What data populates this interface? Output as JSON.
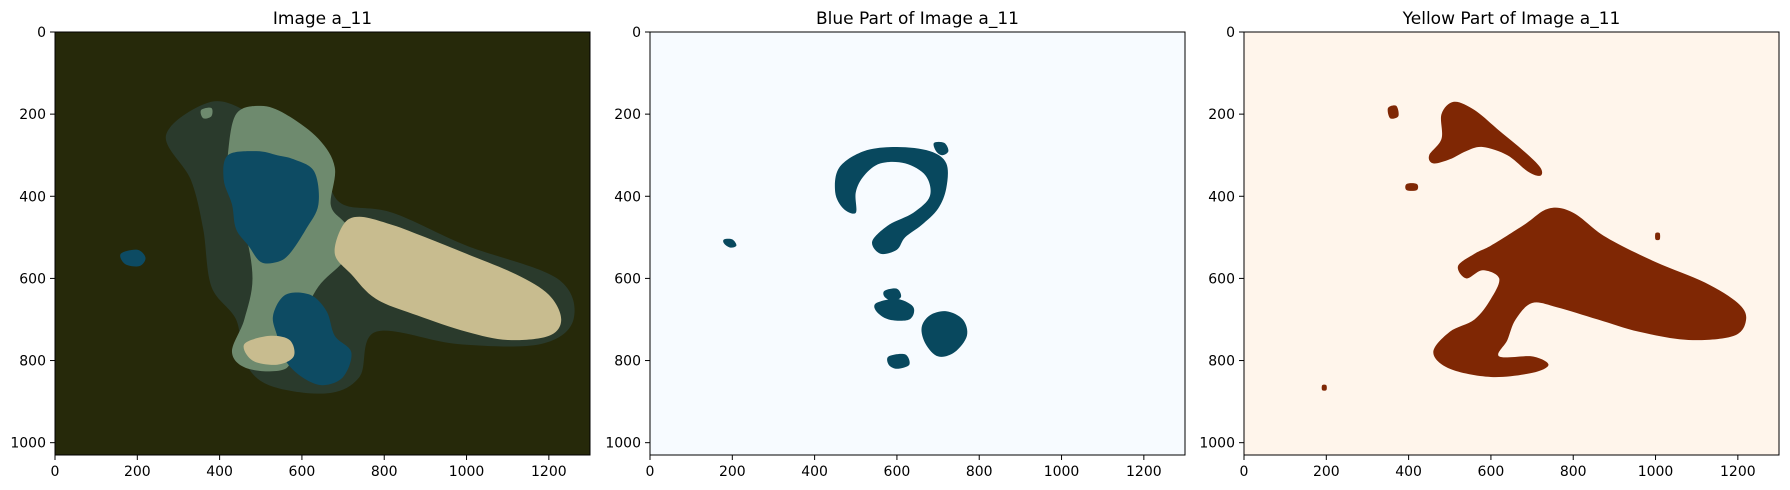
{
  "chart_data": [
    {
      "type": "image",
      "title": "Image a_11",
      "x_ticks": [
        "0",
        "200",
        "400",
        "600",
        "800",
        "1000",
        "1200"
      ],
      "y_ticks": [
        "0",
        "200",
        "400",
        "600",
        "800",
        "1000"
      ],
      "x_tick_values": [
        0,
        200,
        400,
        600,
        800,
        1000,
        1200
      ],
      "y_tick_values": [
        0,
        200,
        400,
        600,
        800,
        1000
      ],
      "xlim": [
        0,
        1300
      ],
      "ylim": [
        1030,
        0
      ],
      "background_color": "#26290a",
      "regions": [
        {
          "color": "#2a3a2c",
          "blob": [
            [
              270,
              250
            ],
            [
              380,
              170
            ],
            [
              480,
              200
            ],
            [
              560,
              250
            ],
            [
              620,
              300
            ],
            [
              660,
              360
            ],
            [
              700,
              420
            ],
            [
              820,
              440
            ],
            [
              1000,
              520
            ],
            [
              1220,
              600
            ],
            [
              1260,
              700
            ],
            [
              1180,
              760
            ],
            [
              980,
              760
            ],
            [
              780,
              730
            ],
            [
              740,
              840
            ],
            [
              660,
              880
            ],
            [
              520,
              860
            ],
            [
              460,
              800
            ],
            [
              440,
              700
            ],
            [
              380,
              620
            ],
            [
              360,
              480
            ],
            [
              330,
              360
            ]
          ]
        },
        {
          "color": "#6e8a6e",
          "blob": [
            [
              440,
              200
            ],
            [
              500,
              180
            ],
            [
              560,
              200
            ],
            [
              640,
              260
            ],
            [
              680,
              330
            ],
            [
              670,
              420
            ],
            [
              700,
              460
            ],
            [
              740,
              500
            ],
            [
              700,
              560
            ],
            [
              640,
              620
            ],
            [
              600,
              700
            ],
            [
              580,
              760
            ],
            [
              560,
              820
            ],
            [
              470,
              820
            ],
            [
              430,
              780
            ],
            [
              460,
              700
            ],
            [
              480,
              600
            ],
            [
              460,
              480
            ],
            [
              420,
              380
            ],
            [
              420,
              300
            ]
          ]
        },
        {
          "color": "#0d4b63",
          "blob": [
            [
              420,
              300
            ],
            [
              490,
              290
            ],
            [
              540,
              300
            ],
            [
              580,
              310
            ],
            [
              630,
              340
            ],
            [
              640,
              420
            ],
            [
              610,
              480
            ],
            [
              570,
              540
            ],
            [
              540,
              560
            ],
            [
              500,
              560
            ],
            [
              470,
              520
            ],
            [
              440,
              480
            ],
            [
              430,
              420
            ],
            [
              410,
              360
            ]
          ]
        },
        {
          "color": "#0d4b63",
          "blob": [
            [
              560,
              640
            ],
            [
              620,
              640
            ],
            [
              660,
              680
            ],
            [
              680,
              740
            ],
            [
              720,
              780
            ],
            [
              700,
              840
            ],
            [
              650,
              860
            ],
            [
              600,
              840
            ],
            [
              560,
              800
            ],
            [
              540,
              740
            ],
            [
              530,
              690
            ]
          ]
        },
        {
          "color": "#0d4b63",
          "blob": [
            [
              160,
              540
            ],
            [
              200,
              530
            ],
            [
              220,
              550
            ],
            [
              205,
              570
            ],
            [
              170,
              565
            ]
          ]
        },
        {
          "color": "#c8bc8f",
          "blob": [
            [
              700,
              470
            ],
            [
              740,
              450
            ],
            [
              820,
              470
            ],
            [
              900,
              500
            ],
            [
              1000,
              540
            ],
            [
              1120,
              590
            ],
            [
              1200,
              640
            ],
            [
              1230,
              700
            ],
            [
              1200,
              740
            ],
            [
              1100,
              750
            ],
            [
              1000,
              730
            ],
            [
              880,
              690
            ],
            [
              780,
              650
            ],
            [
              720,
              590
            ],
            [
              680,
              540
            ]
          ]
        },
        {
          "color": "#c8bc8f",
          "blob": [
            [
              460,
              760
            ],
            [
              520,
              740
            ],
            [
              570,
              750
            ],
            [
              580,
              790
            ],
            [
              540,
              810
            ],
            [
              480,
              800
            ]
          ]
        },
        {
          "color": "#6e8a6e",
          "blob": [
            [
              355,
              190
            ],
            [
              380,
              185
            ],
            [
              380,
              205
            ],
            [
              360,
              210
            ]
          ]
        }
      ]
    },
    {
      "type": "image",
      "title": "Blue Part of Image a_11",
      "x_ticks": [
        "0",
        "200",
        "400",
        "600",
        "800",
        "1000",
        "1200"
      ],
      "y_ticks": [
        "0",
        "200",
        "400",
        "600",
        "800",
        "1000"
      ],
      "x_tick_values": [
        0,
        200,
        400,
        600,
        800,
        1000,
        1200
      ],
      "y_tick_values": [
        0,
        200,
        400,
        600,
        800,
        1000
      ],
      "xlim": [
        0,
        1300
      ],
      "ylim": [
        1030,
        0
      ],
      "background_color": "#f7fbff",
      "regions": [
        {
          "color": "#08485e",
          "blob": [
            [
              460,
              330
            ],
            [
              520,
              290
            ],
            [
              600,
              280
            ],
            [
              680,
              290
            ],
            [
              720,
              320
            ],
            [
              720,
              380
            ],
            [
              700,
              430
            ],
            [
              660,
              470
            ],
            [
              620,
              500
            ],
            [
              600,
              530
            ],
            [
              560,
              540
            ],
            [
              540,
              510
            ],
            [
              580,
              470
            ],
            [
              640,
              440
            ],
            [
              680,
              400
            ],
            [
              670,
              350
            ],
            [
              620,
              320
            ],
            [
              560,
              320
            ],
            [
              520,
              350
            ],
            [
              500,
              390
            ],
            [
              500,
              440
            ],
            [
              470,
              430
            ],
            [
              450,
              390
            ]
          ]
        },
        {
          "color": "#08485e",
          "blob": [
            [
              690,
              270
            ],
            [
              715,
              270
            ],
            [
              725,
              290
            ],
            [
              710,
              300
            ],
            [
              695,
              290
            ]
          ]
        },
        {
          "color": "#08485e",
          "blob": [
            [
              180,
              505
            ],
            [
              200,
              505
            ],
            [
              210,
              520
            ],
            [
              195,
              525
            ],
            [
              180,
              515
            ]
          ]
        },
        {
          "color": "#08485e",
          "blob": [
            [
              570,
              630
            ],
            [
              600,
              625
            ],
            [
              610,
              645
            ],
            [
              590,
              655
            ],
            [
              570,
              645
            ]
          ]
        },
        {
          "color": "#08485e",
          "blob": [
            [
              550,
              660
            ],
            [
              600,
              650
            ],
            [
              640,
              670
            ],
            [
              630,
              700
            ],
            [
              580,
              700
            ],
            [
              550,
              680
            ]
          ]
        },
        {
          "color": "#08485e",
          "blob": [
            [
              680,
              690
            ],
            [
              720,
              680
            ],
            [
              760,
              700
            ],
            [
              770,
              740
            ],
            [
              740,
              780
            ],
            [
              700,
              790
            ],
            [
              670,
              760
            ],
            [
              660,
              720
            ]
          ]
        },
        {
          "color": "#08485e",
          "blob": [
            [
              580,
              790
            ],
            [
              620,
              785
            ],
            [
              630,
              810
            ],
            [
              600,
              820
            ],
            [
              580,
              810
            ]
          ]
        }
      ]
    },
    {
      "type": "image",
      "title": "Yellow Part of Image a_11",
      "x_ticks": [
        "0",
        "200",
        "400",
        "600",
        "800",
        "1000",
        "1200"
      ],
      "y_ticks": [
        "0",
        "200",
        "400",
        "600",
        "800",
        "1000"
      ],
      "x_tick_values": [
        0,
        200,
        400,
        600,
        800,
        1000,
        1200
      ],
      "y_tick_values": [
        0,
        200,
        400,
        600,
        800,
        1000
      ],
      "xlim": [
        0,
        1300
      ],
      "ylim": [
        1030,
        0
      ],
      "background_color": "#fff5eb",
      "regions": [
        {
          "color": "#7f2704",
          "blob": [
            [
              480,
              200
            ],
            [
              510,
              170
            ],
            [
              560,
              190
            ],
            [
              620,
              240
            ],
            [
              680,
              290
            ],
            [
              720,
              330
            ],
            [
              720,
              350
            ],
            [
              690,
              340
            ],
            [
              640,
              300
            ],
            [
              580,
              280
            ],
            [
              540,
              290
            ],
            [
              500,
              310
            ],
            [
              460,
              320
            ],
            [
              450,
              300
            ],
            [
              480,
              260
            ]
          ]
        },
        {
          "color": "#7f2704",
          "blob": [
            [
              350,
              185
            ],
            [
              370,
              180
            ],
            [
              375,
              205
            ],
            [
              355,
              210
            ]
          ]
        },
        {
          "color": "#7f2704",
          "blob": [
            [
              395,
              370
            ],
            [
              420,
              370
            ],
            [
              420,
              385
            ],
            [
              395,
              385
            ]
          ]
        },
        {
          "color": "#7f2704",
          "blob": [
            [
              600,
              520
            ],
            [
              680,
              470
            ],
            [
              740,
              430
            ],
            [
              800,
              440
            ],
            [
              880,
              500
            ],
            [
              1000,
              560
            ],
            [
              1120,
              610
            ],
            [
              1200,
              660
            ],
            [
              1220,
              700
            ],
            [
              1190,
              740
            ],
            [
              1080,
              750
            ],
            [
              960,
              730
            ],
            [
              860,
              700
            ],
            [
              760,
              670
            ],
            [
              700,
              660
            ],
            [
              660,
              700
            ],
            [
              640,
              750
            ],
            [
              620,
              790
            ],
            [
              700,
              790
            ],
            [
              740,
              810
            ],
            [
              700,
              830
            ],
            [
              600,
              840
            ],
            [
              500,
              820
            ],
            [
              460,
              780
            ],
            [
              500,
              730
            ],
            [
              560,
              700
            ],
            [
              600,
              650
            ],
            [
              620,
              600
            ],
            [
              580,
              580
            ],
            [
              540,
              600
            ],
            [
              520,
              570
            ],
            [
              560,
              540
            ]
          ]
        },
        {
          "color": "#7f2704",
          "blob": [
            [
              1000,
              490
            ],
            [
              1010,
              490
            ],
            [
              1010,
              505
            ],
            [
              1000,
              505
            ]
          ]
        },
        {
          "color": "#7f2704",
          "blob": [
            [
              190,
              860
            ],
            [
              200,
              860
            ],
            [
              200,
              872
            ],
            [
              190,
              872
            ]
          ]
        }
      ]
    }
  ]
}
